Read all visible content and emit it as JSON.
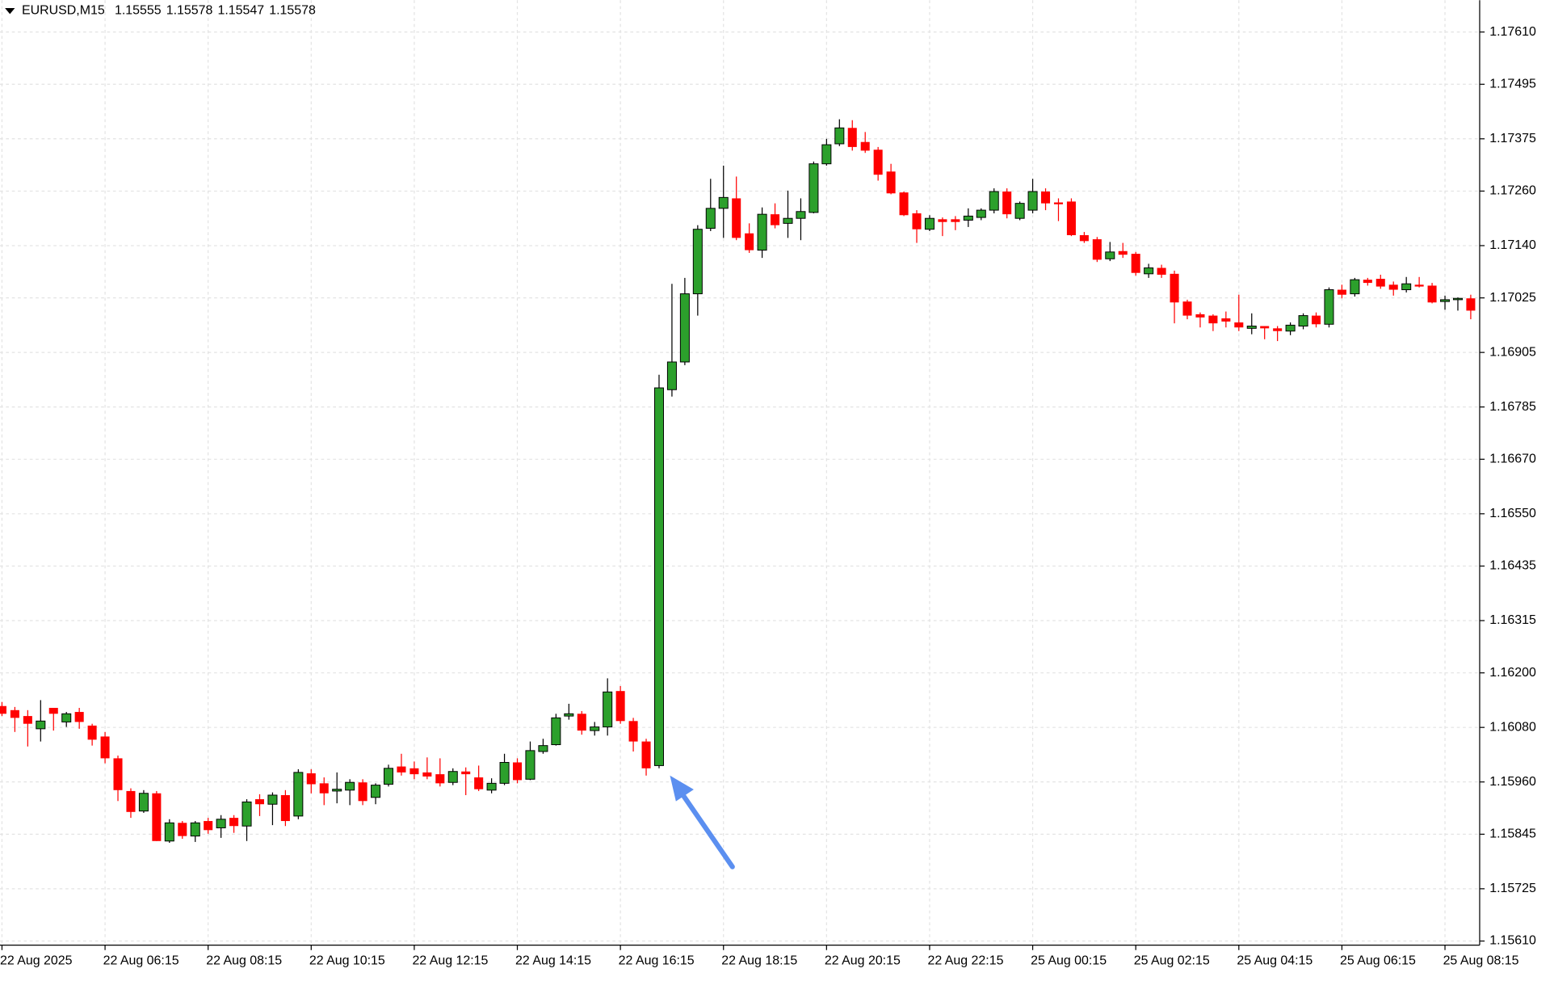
{
  "chart_data": {
    "type": "candlestick",
    "title": "EURUSD,M15",
    "header_values": [
      1.15555,
      1.15578,
      1.15547,
      1.15578
    ],
    "up_color": "#2ca02c",
    "down_color": "#ff0000",
    "grid": true,
    "ylim": [
      1.15601,
      1.1768
    ],
    "yticks": [
      {
        "value": 1.1761,
        "label": "1.17610"
      },
      {
        "value": 1.17495,
        "label": "1.17495"
      },
      {
        "value": 1.17375,
        "label": "1.17375"
      },
      {
        "value": 1.1726,
        "label": "1.17260"
      },
      {
        "value": 1.1714,
        "label": "1.17140"
      },
      {
        "value": 1.17025,
        "label": "1.17025"
      },
      {
        "value": 1.16905,
        "label": "1.16905"
      },
      {
        "value": 1.16785,
        "label": "1.16785"
      },
      {
        "value": 1.1667,
        "label": "1.16670"
      },
      {
        "value": 1.1655,
        "label": "1.16550"
      },
      {
        "value": 1.16435,
        "label": "1.16435"
      },
      {
        "value": 1.16315,
        "label": "1.16315"
      },
      {
        "value": 1.162,
        "label": "1.16200"
      },
      {
        "value": 1.1608,
        "label": "1.16080"
      },
      {
        "value": 1.1596,
        "label": "1.15960"
      },
      {
        "value": 1.15845,
        "label": "1.15845"
      },
      {
        "value": 1.15725,
        "label": "1.15725"
      },
      {
        "value": 1.1561,
        "label": "1.15610"
      }
    ],
    "categories": [
      "22 Aug 2025",
      null,
      null,
      null,
      null,
      null,
      null,
      null,
      "22 Aug 06:15",
      null,
      null,
      null,
      null,
      null,
      null,
      null,
      "22 Aug 08:15",
      null,
      null,
      null,
      null,
      null,
      null,
      null,
      "22 Aug 10:15",
      null,
      null,
      null,
      null,
      null,
      null,
      null,
      "22 Aug 12:15",
      null,
      null,
      null,
      null,
      null,
      null,
      null,
      "22 Aug 14:15",
      null,
      null,
      null,
      null,
      null,
      null,
      null,
      "22 Aug 16:15",
      null,
      null,
      null,
      null,
      null,
      null,
      null,
      "22 Aug 18:15",
      null,
      null,
      null,
      null,
      null,
      null,
      null,
      "22 Aug 20:15",
      null,
      null,
      null,
      null,
      null,
      null,
      null,
      "22 Aug 22:15",
      null,
      null,
      null,
      null,
      null,
      null,
      null,
      "25 Aug 00:15",
      null,
      null,
      null,
      null,
      null,
      null,
      null,
      "25 Aug 02:15",
      null,
      null,
      null,
      null,
      null,
      null,
      null,
      "25 Aug 04:15",
      null,
      null,
      null,
      null,
      null,
      null,
      null,
      "25 Aug 06:15",
      null,
      null,
      null,
      null,
      null,
      null,
      null,
      "25 Aug 08:15",
      null,
      null
    ],
    "open": [
      1.16127,
      1.16118,
      1.16105,
      1.16077,
      1.16123,
      1.16092,
      1.16114,
      1.16084,
      1.1606,
      1.16012,
      1.1594,
      1.15896,
      1.15935,
      1.1583,
      1.1587,
      1.15841,
      1.15874,
      1.15859,
      1.15881,
      1.15863,
      1.15922,
      1.15911,
      1.15931,
      1.15885,
      1.15979,
      1.15957,
      1.1594,
      1.15942,
      1.15959,
      1.15926,
      1.15955,
      1.15994,
      1.1599,
      1.15981,
      1.15977,
      1.15959,
      1.15983,
      1.1597,
      1.15942,
      1.15957,
      1.16003,
      1.15966,
      1.16027,
      1.16042,
      1.16105,
      1.1611,
      1.16073,
      1.16081,
      1.1616,
      1.16094,
      1.16049,
      1.15996,
      1.16823,
      1.16884,
      1.17034,
      1.17178,
      1.17222,
      1.17244,
      1.17167,
      1.1713,
      1.17209,
      1.17189,
      1.172,
      1.17213,
      1.1732,
      1.17364,
      1.17399,
      1.17368,
      1.17351,
      1.17303,
      1.17257,
      1.17211,
      1.17176,
      1.17198,
      1.17198,
      1.17196,
      1.17202,
      1.17218,
      1.17259,
      1.172,
      1.17218,
      1.17259,
      1.17235,
      1.17237,
      1.17163,
      1.17154,
      1.17111,
      1.17128,
      1.17122,
      1.17078,
      1.17091,
      1.17078,
      1.17017,
      1.16989,
      1.16986,
      1.1698,
      1.16971,
      1.16958,
      1.16963,
      1.16958,
      1.16952,
      1.16963,
      1.16986,
      1.16967,
      1.17043,
      1.17034,
      1.17065,
      1.17067,
      1.17054,
      1.17043,
      1.17054,
      1.17052,
      1.17017,
      1.17021,
      1.17024
    ],
    "high": [
      1.16136,
      1.16125,
      1.16118,
      1.1614,
      1.16123,
      1.16114,
      1.16123,
      1.16088,
      1.1607,
      1.16018,
      1.15946,
      1.15942,
      1.1594,
      1.15878,
      1.15874,
      1.15874,
      1.15881,
      1.15887,
      1.15887,
      1.15922,
      1.15933,
      1.15937,
      1.15942,
      1.15988,
      1.15988,
      1.1597,
      1.15981,
      1.15966,
      1.15966,
      1.15957,
      1.15998,
      1.16022,
      1.16005,
      1.16014,
      1.16012,
      1.1599,
      1.15992,
      1.15996,
      1.15968,
      1.16022,
      1.16012,
      1.16049,
      1.16055,
      1.1611,
      1.16132,
      1.16116,
      1.16092,
      1.16188,
      1.16171,
      1.16101,
      1.16055,
      1.16856,
      1.17056,
      1.17069,
      1.17185,
      1.17287,
      1.17316,
      1.17292,
      1.17189,
      1.17224,
      1.17233,
      1.17261,
      1.17244,
      1.17325,
      1.17375,
      1.17418,
      1.17416,
      1.1739,
      1.17357,
      1.1732,
      1.17259,
      1.17218,
      1.17207,
      1.17202,
      1.17205,
      1.17222,
      1.17222,
      1.17266,
      1.17266,
      1.17237,
      1.17287,
      1.17266,
      1.17244,
      1.17244,
      1.1717,
      1.17159,
      1.17148,
      1.17146,
      1.17126,
      1.171,
      1.17098,
      1.17085,
      1.17021,
      1.16993,
      1.16989,
      1.16995,
      1.17032,
      1.16991,
      1.16963,
      1.16963,
      1.16971,
      1.16991,
      1.16993,
      1.17048,
      1.17054,
      1.17069,
      1.17069,
      1.17076,
      1.17061,
      1.17071,
      1.17071,
      1.17058,
      1.1703,
      1.17026,
      1.17032
    ],
    "low": [
      1.16105,
      1.1607,
      1.16038,
      1.16049,
      1.16073,
      1.16081,
      1.16077,
      1.1604,
      1.16001,
      1.15918,
      1.15881,
      1.15892,
      1.1583,
      1.15826,
      1.15835,
      1.15828,
      1.15846,
      1.15837,
      1.15848,
      1.1583,
      1.15885,
      1.15865,
      1.15863,
      1.15878,
      1.15935,
      1.15909,
      1.15913,
      1.15909,
      1.15909,
      1.15911,
      1.1595,
      1.15974,
      1.15966,
      1.15966,
      1.1595,
      1.15953,
      1.15931,
      1.1594,
      1.15935,
      1.15953,
      1.15957,
      1.15964,
      1.16022,
      1.1604,
      1.16097,
      1.16064,
      1.16062,
      1.16062,
      1.16088,
      1.16027,
      1.15974,
      1.1599,
      1.16808,
      1.16877,
      1.16986,
      1.17172,
      1.17157,
      1.17152,
      1.17124,
      1.17113,
      1.17178,
      1.17157,
      1.17152,
      1.17211,
      1.17316,
      1.17359,
      1.17349,
      1.17344,
      1.17283,
      1.17253,
      1.17205,
      1.17146,
      1.17172,
      1.17161,
      1.17174,
      1.17181,
      1.17196,
      1.17211,
      1.172,
      1.17196,
      1.17211,
      1.17218,
      1.17194,
      1.17161,
      1.17146,
      1.17104,
      1.17106,
      1.17113,
      1.17074,
      1.17069,
      1.17069,
      1.16969,
      1.16978,
      1.1696,
      1.16952,
      1.1696,
      1.16952,
      1.16945,
      1.16934,
      1.1693,
      1.16943,
      1.16956,
      1.1696,
      1.1696,
      1.17024,
      1.17028,
      1.17052,
      1.17045,
      1.1703,
      1.17037,
      1.17048,
      1.17013,
      1.16999,
      1.16997,
      1.16978
    ],
    "close": [
      1.1611,
      1.16101,
      1.16088,
      1.16094,
      1.1611,
      1.1611,
      1.16092,
      1.16053,
      1.16012,
      1.15942,
      1.15894,
      1.15935,
      1.1583,
      1.1587,
      1.15841,
      1.1587,
      1.15854,
      1.15878,
      1.15863,
      1.15916,
      1.15911,
      1.15931,
      1.15874,
      1.15981,
      1.15955,
      1.15935,
      1.15944,
      1.15959,
      1.15918,
      1.15953,
      1.1599,
      1.15981,
      1.15977,
      1.15972,
      1.15957,
      1.15983,
      1.15977,
      1.15944,
      1.15957,
      1.16003,
      1.15964,
      1.16029,
      1.1604,
      1.16101,
      1.1611,
      1.16073,
      1.16081,
      1.16158,
      1.16094,
      1.16049,
      1.1599,
      1.16827,
      1.16884,
      1.17034,
      1.17176,
      1.17222,
      1.17246,
      1.17157,
      1.1713,
      1.17209,
      1.17185,
      1.172,
      1.17215,
      1.1732,
      1.17362,
      1.17399,
      1.17357,
      1.17349,
      1.17296,
      1.17255,
      1.17207,
      1.17176,
      1.172,
      1.17192,
      1.17192,
      1.17205,
      1.17218,
      1.17259,
      1.17209,
      1.17233,
      1.17259,
      1.17233,
      1.17231,
      1.17163,
      1.1715,
      1.17109,
      1.17126,
      1.1712,
      1.1708,
      1.17091,
      1.17076,
      1.17015,
      1.16986,
      1.16982,
      1.16969,
      1.16973,
      1.1696,
      1.16963,
      1.16958,
      1.16952,
      1.16965,
      1.16986,
      1.16967,
      1.17043,
      1.17032,
      1.17065,
      1.17058,
      1.1705,
      1.17043,
      1.17056,
      1.1705,
      1.17015,
      1.17021,
      1.17024,
      1.16997
    ]
  }
}
